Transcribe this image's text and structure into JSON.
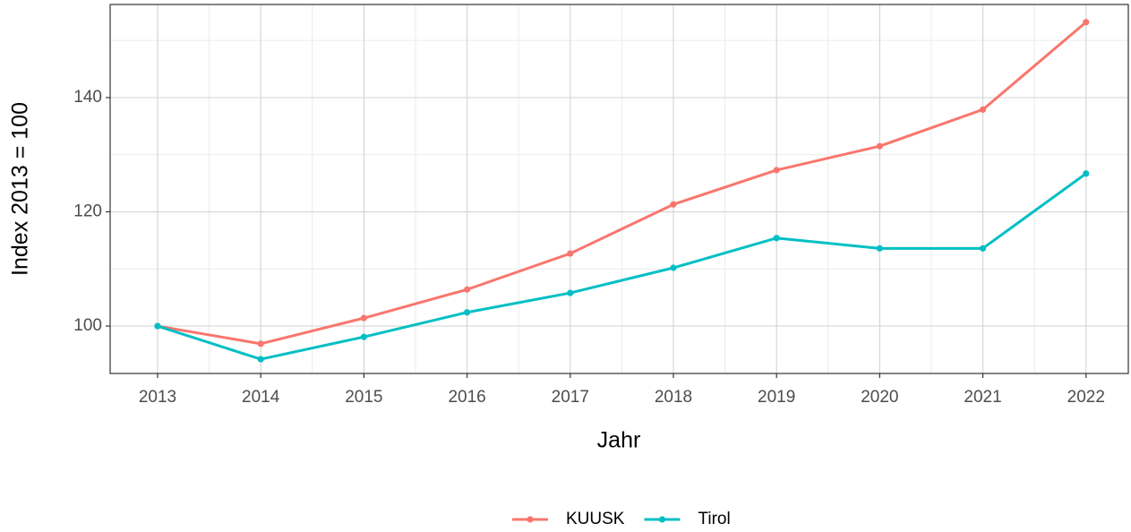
{
  "chart_data": {
    "type": "line",
    "x": [
      2013,
      2014,
      2015,
      2016,
      2017,
      2018,
      2019,
      2020,
      2021,
      2022
    ],
    "series": [
      {
        "name": "KUUSK",
        "color": "#F8766D",
        "values": [
          100,
          96.9,
          101.4,
          106.4,
          112.7,
          121.3,
          127.3,
          131.5,
          137.9,
          153.2
        ]
      },
      {
        "name": "Tirol",
        "color": "#00BFC4",
        "values": [
          100,
          94.2,
          98.1,
          102.4,
          105.8,
          110.2,
          115.4,
          113.6,
          113.6,
          126.7
        ]
      }
    ],
    "xlabel": "Jahr",
    "ylabel": "Index  2013  = 100",
    "xlim": [
      2012.54,
      2022.41
    ],
    "xticks": [
      2013,
      2014,
      2015,
      2016,
      2017,
      2018,
      2019,
      2020,
      2021,
      2022
    ],
    "ylim": [
      91.7,
      156.3
    ],
    "yticks": [
      100,
      120,
      140
    ],
    "grid": true,
    "legend": "bottom"
  }
}
